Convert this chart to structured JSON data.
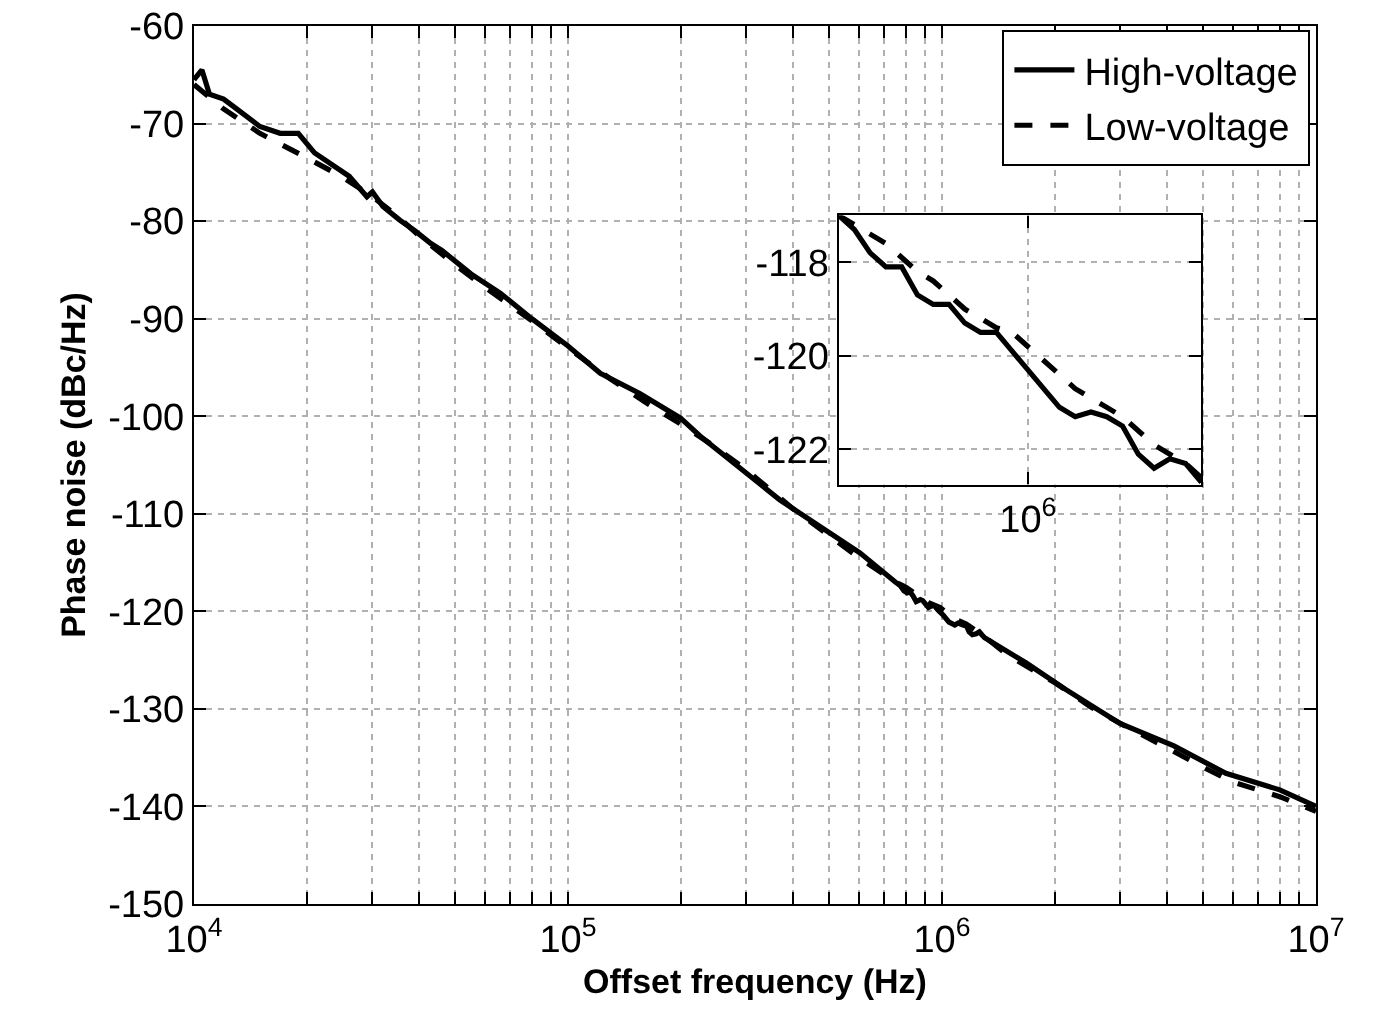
{
  "chart_data": [
    {
      "type": "line",
      "xlabel": "Offset frequency (Hz)",
      "ylabel": "Phase noise (dBc/Hz)",
      "log": "x",
      "grid": true,
      "legend": "top right",
      "xlim": [
        10000,
        10000000
      ],
      "ylim": [
        -150,
        -60
      ],
      "xticks": [
        {
          "value": 10000,
          "label": "10$^{4}$"
        },
        {
          "value": 20000,
          "label": null
        },
        {
          "value": 30000,
          "label": null
        },
        {
          "value": 40000,
          "label": null
        },
        {
          "value": 50000,
          "label": null
        },
        {
          "value": 60000,
          "label": null
        },
        {
          "value": 70000,
          "label": null
        },
        {
          "value": 80000,
          "label": null
        },
        {
          "value": 90000,
          "label": null
        },
        {
          "value": 100000,
          "label": "10$^{5}$"
        },
        {
          "value": 200000,
          "label": null
        },
        {
          "value": 300000,
          "label": null
        },
        {
          "value": 400000,
          "label": null
        },
        {
          "value": 500000,
          "label": null
        },
        {
          "value": 600000,
          "label": null
        },
        {
          "value": 700000,
          "label": null
        },
        {
          "value": 800000,
          "label": null
        },
        {
          "value": 900000,
          "label": null
        },
        {
          "value": 1000000,
          "label": "10$^{6}$"
        },
        {
          "value": 2000000,
          "label": null
        },
        {
          "value": 3000000,
          "label": null
        },
        {
          "value": 4000000,
          "label": null
        },
        {
          "value": 5000000,
          "label": null
        },
        {
          "value": 6000000,
          "label": null
        },
        {
          "value": 7000000,
          "label": null
        },
        {
          "value": 8000000,
          "label": null
        },
        {
          "value": 9000000,
          "label": null
        },
        {
          "value": 10000000,
          "label": "10$^{7}$"
        }
      ],
      "yticks": [
        -150,
        -140,
        -130,
        -120,
        -110,
        -100,
        -90,
        -80,
        -70,
        -60
      ],
      "series": [
        {
          "name": "High-voltage",
          "color": "#000000",
          "line_style": "solid",
          "x": [
            10000,
            10500,
            11000,
            12000,
            13000,
            15000,
            17000,
            19000,
            21000,
            26000,
            29000,
            30000,
            32000,
            35500,
            39000,
            43000,
            46000,
            55000,
            66000,
            80000,
            100000,
            122000,
            156000,
            200000,
            225000,
            369000,
            603000,
            750000,
            775000,
            791000,
            807000,
            821000,
            836000,
            853000,
            875000,
            888000,
            920000,
            944000,
            958000,
            978000,
            1008000,
            1044000,
            1082000,
            1104000,
            1138000,
            1163000,
            1182000,
            1206000,
            1234000,
            1259000,
            1278000,
            1300000,
            1680000,
            2140000,
            2990000,
            4170000,
            5740000,
            8000000,
            10000000
          ],
          "values": [
            -65.5,
            -64.5,
            -67,
            -67.5,
            -68.5,
            -70.3,
            -71,
            -71,
            -73,
            -75.4,
            -77.5,
            -77,
            -78.5,
            -79.9,
            -81,
            -82.3,
            -83,
            -85.4,
            -87.4,
            -90,
            -92.8,
            -95.6,
            -97.7,
            -100.2,
            -102,
            -108.6,
            -114,
            -117.0,
            -117.4,
            -117.9,
            -118.1,
            -118.0,
            -118.4,
            -119.0,
            -118.8,
            -118.9,
            -119.6,
            -119.4,
            -119.5,
            -119.9,
            -120.4,
            -121.1,
            -121.4,
            -121.2,
            -121.4,
            -121.5,
            -122.1,
            -122.4,
            -122.3,
            -122.1,
            -122.4,
            -122.7,
            -125.3,
            -128,
            -131.5,
            -133.8,
            -136.6,
            -138.3,
            -140
          ]
        },
        {
          "name": "Low-voltage",
          "color": "#000000",
          "line_style": "dashed",
          "x": [
            10000,
            12000,
            15000,
            20000,
            25000,
            30000,
            35000,
            40000,
            50000,
            60000,
            80000,
            100000,
            130000,
            160000,
            200000,
            240000,
            300000,
            400000,
            600000,
            750000,
            799000,
            849000,
            920000,
            988000,
            1071000,
            1161000,
            1246000,
            1300000,
            1500000,
            2000000,
            2500000,
            3000000,
            4000000,
            5000000,
            6000000,
            8000000,
            10000000
          ],
          "values": [
            -66,
            -68.5,
            -71,
            -73.5,
            -75.5,
            -77.5,
            -79.5,
            -81.5,
            -84.5,
            -86.8,
            -90.2,
            -93,
            -96.2,
            -98.5,
            -100.8,
            -102.8,
            -105.5,
            -109.5,
            -114.5,
            -117.0,
            -117.5,
            -118.2,
            -119.1,
            -119.6,
            -120.7,
            -121.3,
            -122.1,
            -122.6,
            -124.5,
            -127.3,
            -129.8,
            -131.5,
            -134,
            -136,
            -137.5,
            -139,
            -140.5
          ]
        }
      ]
    },
    {
      "type": "line",
      "grid": true,
      "categories": [
        null,
        null,
        null,
        null,
        null,
        null,
        null,
        null,
        null,
        null,
        null,
        null,
        "10$^{6}$",
        null,
        null,
        null,
        null,
        null,
        null,
        null,
        null,
        null,
        null,
        null
      ],
      "ylim": [
        -122.75,
        -117
      ],
      "yticks": [
        -122,
        -120,
        -118
      ],
      "series": [
        {
          "color": "#000000",
          "line_style": "solid",
          "values": [
            -117.0,
            -117.3,
            -117.8,
            -118.1,
            -118.1,
            -118.7,
            -118.9,
            -118.9,
            -119.3,
            -119.5,
            -119.5,
            -119.9,
            -120.3,
            -120.7,
            -121.1,
            -121.3,
            -121.2,
            -121.3,
            -121.5,
            -122.1,
            -122.4,
            -122.2,
            -122.3,
            -122.7
          ]
        },
        {
          "color": "#000000",
          "line_style": "dashed",
          "values": [
            -117.0,
            -117.2,
            -117.4,
            -117.6,
            -117.9,
            -118.2,
            -118.4,
            -118.7,
            -119.0,
            -119.2,
            -119.4,
            -119.5,
            -119.8,
            -120.1,
            -120.4,
            -120.7,
            -120.9,
            -121.1,
            -121.3,
            -121.6,
            -121.9,
            -122.1,
            -122.3,
            -122.6
          ]
        }
      ]
    }
  ]
}
